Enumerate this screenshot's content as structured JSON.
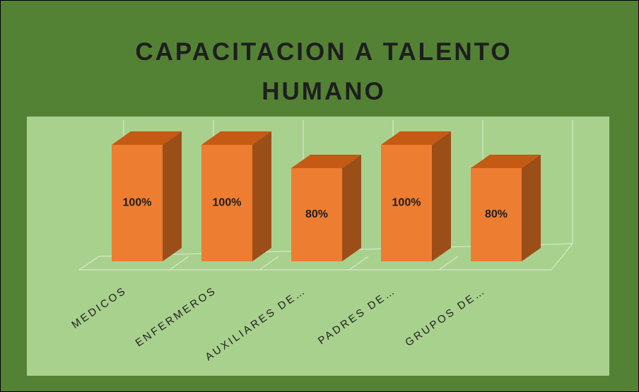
{
  "chart_data": {
    "type": "bar3d",
    "title": "CAPACITACION A TALENTO HUMANO",
    "categories": [
      "MEDICOS",
      "ENFERMEROS",
      "AUXILIARES DE…",
      "PADRES DE…",
      "GRUPOS DE…"
    ],
    "values": [
      100,
      100,
      80,
      100,
      80
    ],
    "value_labels": [
      "100%",
      "100%",
      "80%",
      "100%",
      "80%"
    ],
    "color": "#ed7d31",
    "ylim": [
      0,
      100
    ]
  }
}
